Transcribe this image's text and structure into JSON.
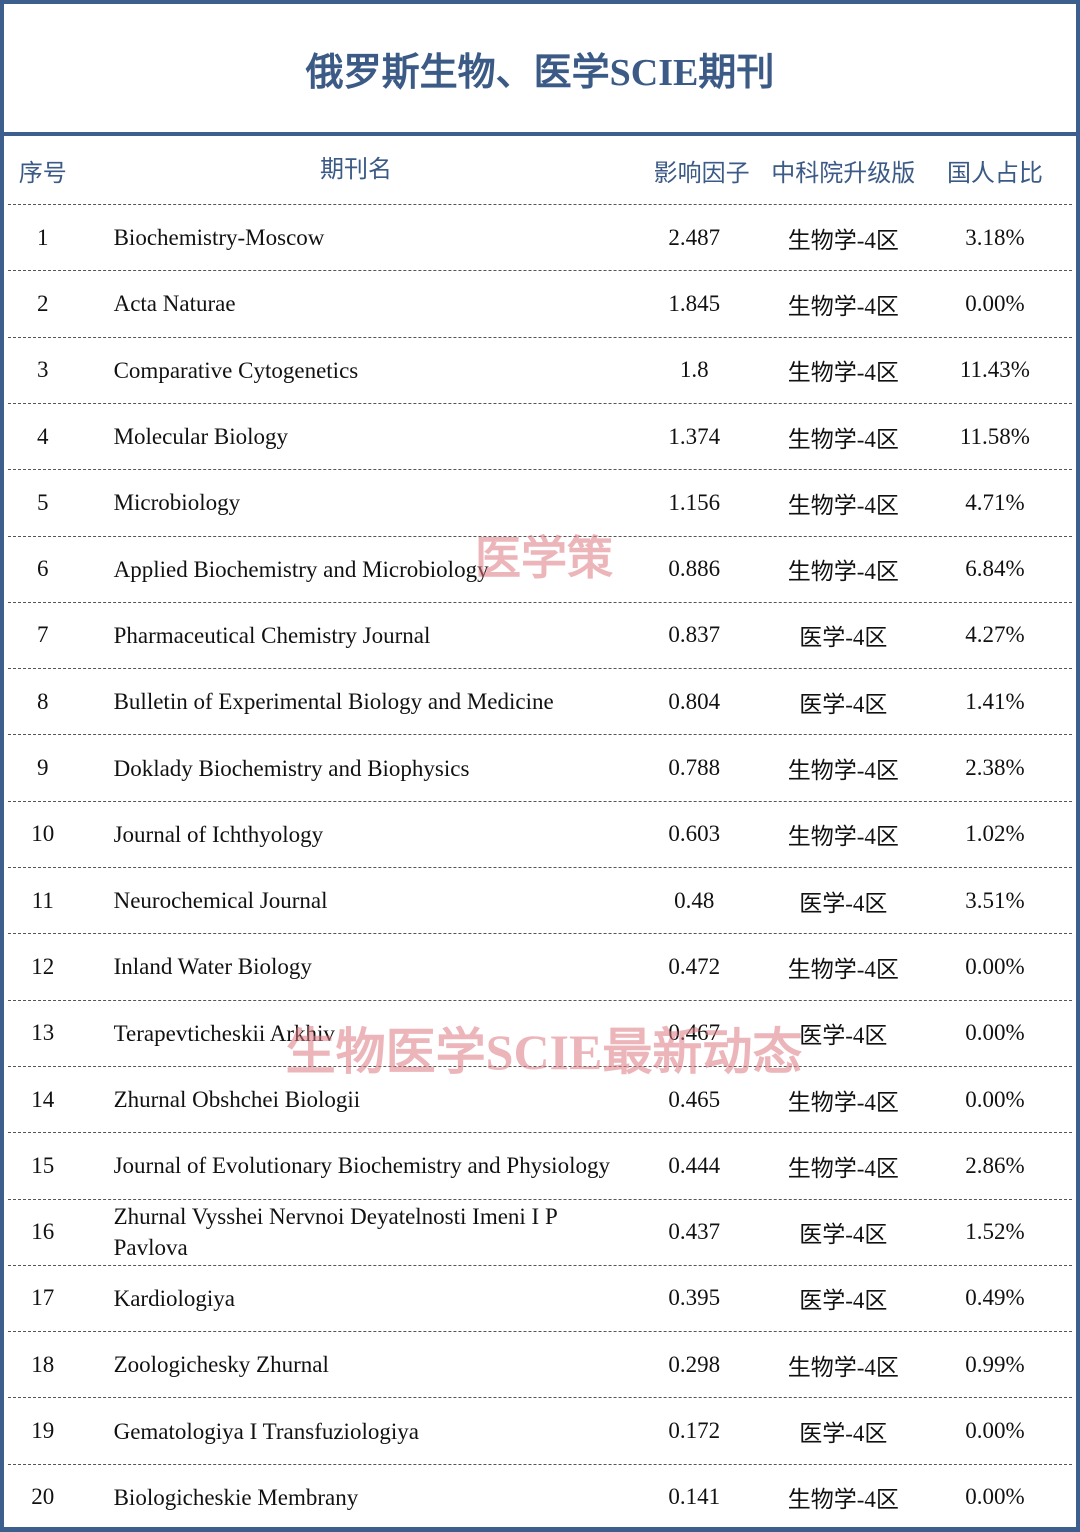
{
  "title": "俄罗斯生物、医学SCIE期刊",
  "table": {
    "header": [
      "序号",
      "期刊名",
      "影响因子",
      "中科院升级版",
      "国人占比"
    ],
    "rows": [
      [
        "1",
        "Biochemistry-Moscow",
        "2.487",
        "生物学-4区",
        "3.18%"
      ],
      [
        "2",
        "Acta Naturae",
        "1.845",
        "生物学-4区",
        "0.00%"
      ],
      [
        "3",
        "Comparative Cytogenetics",
        "1.8",
        "生物学-4区",
        "11.43%"
      ],
      [
        "4",
        "Molecular Biology",
        "1.374",
        "生物学-4区",
        "11.58%"
      ],
      [
        "5",
        "Microbiology",
        "1.156",
        "生物学-4区",
        "4.71%"
      ],
      [
        "6",
        "Applied Biochemistry and Microbiology",
        "0.886",
        "生物学-4区",
        "6.84%"
      ],
      [
        "7",
        "Pharmaceutical Chemistry Journal",
        "0.837",
        "医学-4区",
        "4.27%"
      ],
      [
        "8",
        "Bulletin of Experimental Biology and Medicine",
        "0.804",
        "医学-4区",
        "1.41%"
      ],
      [
        "9",
        "Doklady Biochemistry and Biophysics",
        "0.788",
        "生物学-4区",
        "2.38%"
      ],
      [
        "10",
        "Journal of Ichthyology",
        "0.603",
        "生物学-4区",
        "1.02%"
      ],
      [
        "11",
        "Neurochemical Journal",
        "0.48",
        "医学-4区",
        "3.51%"
      ],
      [
        "12",
        "Inland Water Biology",
        "0.472",
        "生物学-4区",
        "0.00%"
      ],
      [
        "13",
        "Terapevticheskii Arkhiv",
        "0.467",
        "医学-4区",
        "0.00%"
      ],
      [
        "14",
        "Zhurnal Obshchei Biologii",
        "0.465",
        "生物学-4区",
        "0.00%"
      ],
      [
        "15",
        "Journal of Evolutionary Biochemistry and Physiology",
        "0.444",
        "生物学-4区",
        "2.86%"
      ],
      [
        "16",
        "Zhurnal Vysshei Nervnoi Deyatelnosti Imeni I P Pavlova",
        "0.437",
        "医学-4区",
        "1.52%"
      ],
      [
        "17",
        "Kardiologiya",
        "0.395",
        "医学-4区",
        "0.49%"
      ],
      [
        "18",
        "Zoologichesky Zhurnal",
        "0.298",
        "生物学-4区",
        "0.99%"
      ],
      [
        "19",
        "Gematologiya I Transfuziologiya",
        "0.172",
        "医学-4区",
        "0.00%"
      ],
      [
        "20",
        "Biologicheskie Membrany",
        "0.141",
        "生物学-4区",
        "0.00%"
      ]
    ]
  },
  "watermarks": [
    "医学策",
    "生物医学SCIE最新动态"
  ]
}
